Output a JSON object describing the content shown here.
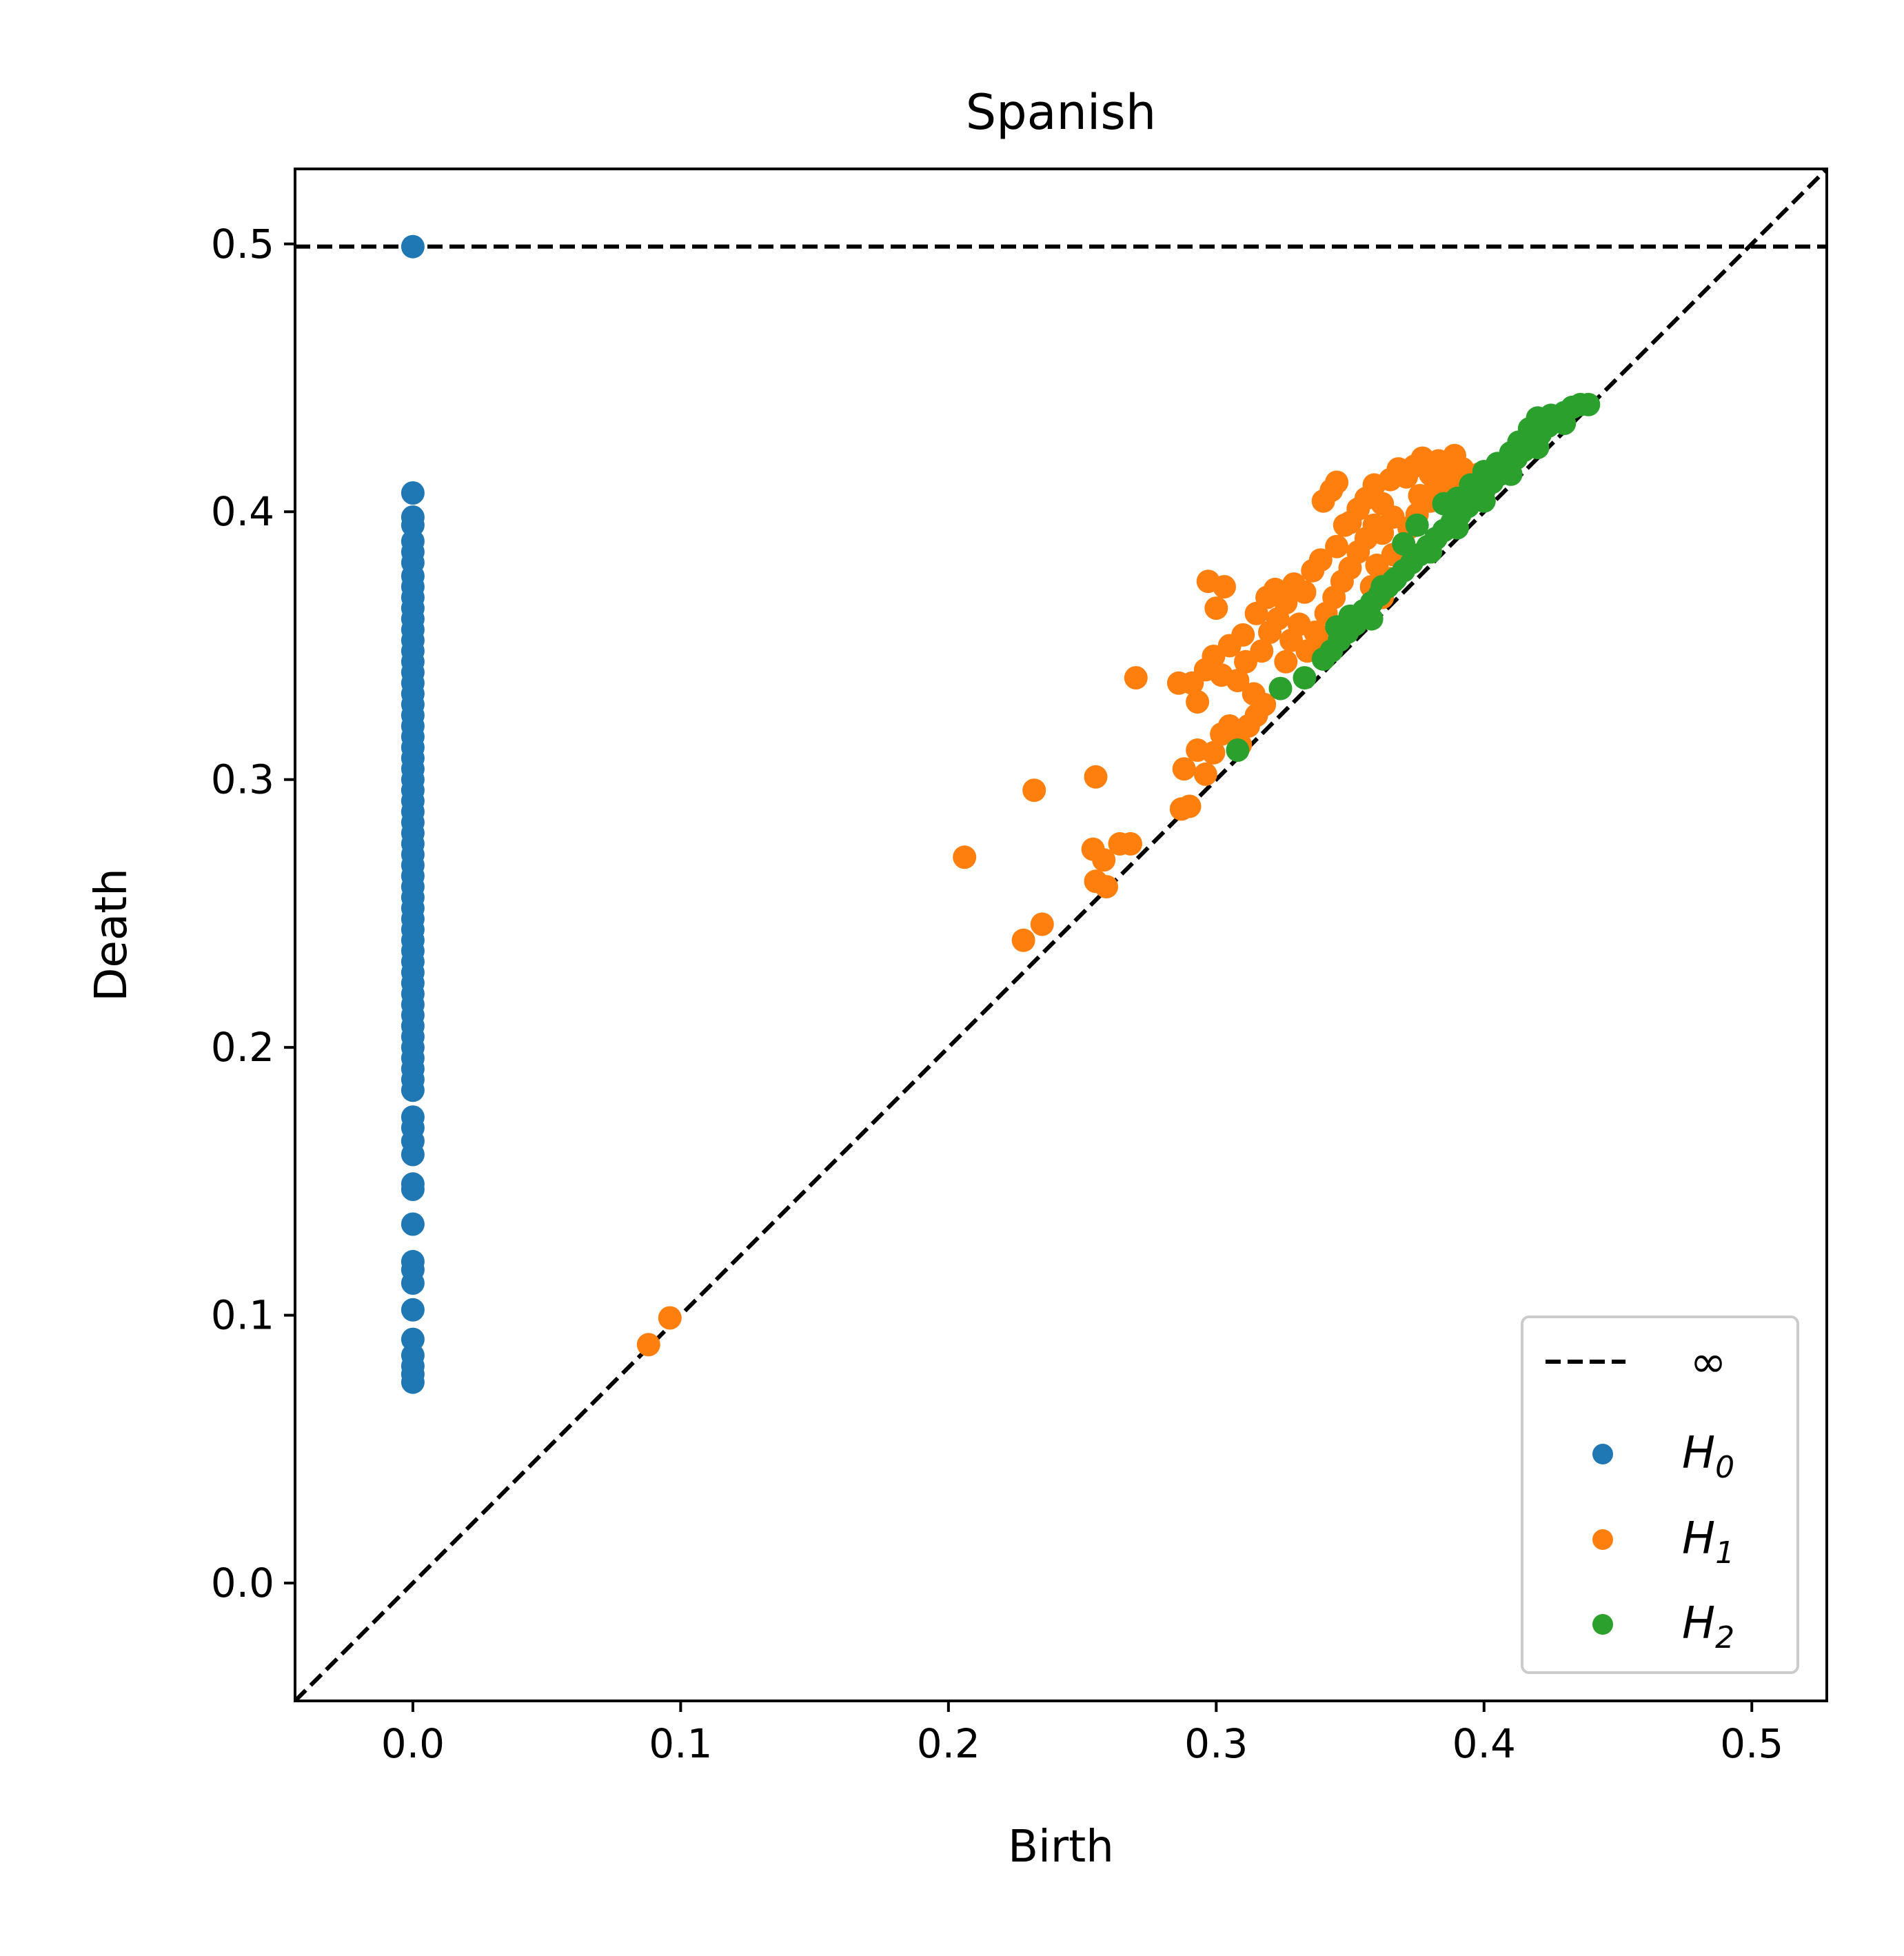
{
  "chart_data": {
    "type": "scatter",
    "title": "Spanish",
    "xlabel": "Birth",
    "ylabel": "Death",
    "xlim": [
      -0.044,
      0.528
    ],
    "ylim": [
      -0.044,
      0.528
    ],
    "xticks": [
      "0.0",
      "0.1",
      "0.2",
      "0.3",
      "0.4",
      "0.5"
    ],
    "yticks": [
      "0.0",
      "0.1",
      "0.2",
      "0.3",
      "0.4",
      "0.5"
    ],
    "grid": false,
    "legend_position": "bottom-right",
    "infinity_line": {
      "label": "∞",
      "y": 0.499,
      "color": "#000000",
      "style": "dashed"
    },
    "diagonal": {
      "color": "#000000",
      "style": "dashed"
    },
    "series": [
      {
        "name": "H",
        "subscript": "0",
        "color": "#1f77b4",
        "points": [
          [
            0.0,
            0.499
          ],
          [
            0.0,
            0.407
          ],
          [
            0.0,
            0.398
          ],
          [
            0.0,
            0.395
          ],
          [
            0.0,
            0.389
          ],
          [
            0.0,
            0.385
          ],
          [
            0.0,
            0.381
          ],
          [
            0.0,
            0.376
          ],
          [
            0.0,
            0.372
          ],
          [
            0.0,
            0.368
          ],
          [
            0.0,
            0.364
          ],
          [
            0.0,
            0.36
          ],
          [
            0.0,
            0.356
          ],
          [
            0.0,
            0.352
          ],
          [
            0.0,
            0.348
          ],
          [
            0.0,
            0.344
          ],
          [
            0.0,
            0.34
          ],
          [
            0.0,
            0.336
          ],
          [
            0.0,
            0.332
          ],
          [
            0.0,
            0.328
          ],
          [
            0.0,
            0.324
          ],
          [
            0.0,
            0.32
          ],
          [
            0.0,
            0.316
          ],
          [
            0.0,
            0.312
          ],
          [
            0.0,
            0.308
          ],
          [
            0.0,
            0.304
          ],
          [
            0.0,
            0.3
          ],
          [
            0.0,
            0.296
          ],
          [
            0.0,
            0.292
          ],
          [
            0.0,
            0.288
          ],
          [
            0.0,
            0.284
          ],
          [
            0.0,
            0.28
          ],
          [
            0.0,
            0.276
          ],
          [
            0.0,
            0.272
          ],
          [
            0.0,
            0.268
          ],
          [
            0.0,
            0.264
          ],
          [
            0.0,
            0.26
          ],
          [
            0.0,
            0.256
          ],
          [
            0.0,
            0.252
          ],
          [
            0.0,
            0.248
          ],
          [
            0.0,
            0.244
          ],
          [
            0.0,
            0.24
          ],
          [
            0.0,
            0.236
          ],
          [
            0.0,
            0.232
          ],
          [
            0.0,
            0.228
          ],
          [
            0.0,
            0.224
          ],
          [
            0.0,
            0.22
          ],
          [
            0.0,
            0.216
          ],
          [
            0.0,
            0.212
          ],
          [
            0.0,
            0.208
          ],
          [
            0.0,
            0.204
          ],
          [
            0.0,
            0.2
          ],
          [
            0.0,
            0.196
          ],
          [
            0.0,
            0.192
          ],
          [
            0.0,
            0.188
          ],
          [
            0.0,
            0.184
          ],
          [
            0.0,
            0.174
          ],
          [
            0.0,
            0.17
          ],
          [
            0.0,
            0.165
          ],
          [
            0.0,
            0.16
          ],
          [
            0.0,
            0.149
          ],
          [
            0.0,
            0.147
          ],
          [
            0.0,
            0.134
          ],
          [
            0.0,
            0.12
          ],
          [
            0.0,
            0.117
          ],
          [
            0.0,
            0.112
          ],
          [
            0.0,
            0.102
          ],
          [
            0.0,
            0.091
          ],
          [
            0.0,
            0.085
          ],
          [
            0.0,
            0.081
          ],
          [
            0.0,
            0.078
          ],
          [
            0.0,
            0.075
          ]
        ]
      },
      {
        "name": "H",
        "subscript": "1",
        "color": "#ff7f0e",
        "points": [
          [
            0.088,
            0.089
          ],
          [
            0.096,
            0.099
          ],
          [
            0.206,
            0.271
          ],
          [
            0.228,
            0.24
          ],
          [
            0.235,
            0.246
          ],
          [
            0.232,
            0.296
          ],
          [
            0.254,
            0.274
          ],
          [
            0.255,
            0.262
          ],
          [
            0.259,
            0.26
          ],
          [
            0.258,
            0.27
          ],
          [
            0.264,
            0.276
          ],
          [
            0.268,
            0.276
          ],
          [
            0.255,
            0.301
          ],
          [
            0.27,
            0.338
          ],
          [
            0.287,
            0.289
          ],
          [
            0.29,
            0.29
          ],
          [
            0.288,
            0.304
          ],
          [
            0.293,
            0.311
          ],
          [
            0.296,
            0.302
          ],
          [
            0.299,
            0.31
          ],
          [
            0.302,
            0.317
          ],
          [
            0.305,
            0.32
          ],
          [
            0.309,
            0.313
          ],
          [
            0.312,
            0.32
          ],
          [
            0.315,
            0.324
          ],
          [
            0.318,
            0.328
          ],
          [
            0.286,
            0.336
          ],
          [
            0.291,
            0.336
          ],
          [
            0.293,
            0.329
          ],
          [
            0.296,
            0.341
          ],
          [
            0.299,
            0.346
          ],
          [
            0.302,
            0.339
          ],
          [
            0.305,
            0.35
          ],
          [
            0.308,
            0.337
          ],
          [
            0.311,
            0.344
          ],
          [
            0.314,
            0.332
          ],
          [
            0.317,
            0.348
          ],
          [
            0.32,
            0.355
          ],
          [
            0.323,
            0.36
          ],
          [
            0.326,
            0.344
          ],
          [
            0.297,
            0.374
          ],
          [
            0.303,
            0.372
          ],
          [
            0.3,
            0.364
          ],
          [
            0.31,
            0.354
          ],
          [
            0.315,
            0.362
          ],
          [
            0.319,
            0.368
          ],
          [
            0.322,
            0.371
          ],
          [
            0.326,
            0.366
          ],
          [
            0.329,
            0.373
          ],
          [
            0.333,
            0.37
          ],
          [
            0.336,
            0.378
          ],
          [
            0.339,
            0.382
          ],
          [
            0.328,
            0.352
          ],
          [
            0.331,
            0.358
          ],
          [
            0.334,
            0.348
          ],
          [
            0.337,
            0.355
          ],
          [
            0.341,
            0.362
          ],
          [
            0.344,
            0.368
          ],
          [
            0.347,
            0.374
          ],
          [
            0.35,
            0.379
          ],
          [
            0.353,
            0.385
          ],
          [
            0.356,
            0.39
          ],
          [
            0.359,
            0.395
          ],
          [
            0.345,
            0.387
          ],
          [
            0.35,
            0.396
          ],
          [
            0.353,
            0.401
          ],
          [
            0.356,
            0.405
          ],
          [
            0.359,
            0.41
          ],
          [
            0.362,
            0.403
          ],
          [
            0.365,
            0.412
          ],
          [
            0.368,
            0.416
          ],
          [
            0.371,
            0.413
          ],
          [
            0.374,
            0.417
          ],
          [
            0.377,
            0.42
          ],
          [
            0.38,
            0.414
          ],
          [
            0.383,
            0.419
          ],
          [
            0.386,
            0.418
          ],
          [
            0.389,
            0.421
          ],
          [
            0.392,
            0.416
          ],
          [
            0.395,
            0.412
          ],
          [
            0.345,
            0.411
          ],
          [
            0.343,
            0.408
          ],
          [
            0.34,
            0.404
          ],
          [
            0.348,
            0.395
          ],
          [
            0.36,
            0.38
          ],
          [
            0.365,
            0.375
          ],
          [
            0.37,
            0.388
          ],
          [
            0.375,
            0.399
          ],
          [
            0.38,
            0.404
          ],
          [
            0.385,
            0.408
          ],
          [
            0.39,
            0.406
          ],
          [
            0.362,
            0.392
          ],
          [
            0.366,
            0.398
          ],
          [
            0.358,
            0.372
          ],
          [
            0.362,
            0.368
          ],
          [
            0.366,
            0.384
          ],
          [
            0.372,
            0.394
          ],
          [
            0.376,
            0.406
          ],
          [
            0.382,
            0.41
          ],
          [
            0.388,
            0.412
          ],
          [
            0.394,
            0.41
          ],
          [
            0.398,
            0.414
          ],
          [
            0.34,
            0.35
          ],
          [
            0.343,
            0.352
          ],
          [
            0.346,
            0.356
          ]
        ]
      },
      {
        "name": "H",
        "subscript": "2",
        "color": "#2ca02c",
        "points": [
          [
            0.308,
            0.311
          ],
          [
            0.324,
            0.334
          ],
          [
            0.333,
            0.338
          ],
          [
            0.34,
            0.345
          ],
          [
            0.343,
            0.348
          ],
          [
            0.346,
            0.352
          ],
          [
            0.349,
            0.355
          ],
          [
            0.352,
            0.358
          ],
          [
            0.345,
            0.357
          ],
          [
            0.35,
            0.361
          ],
          [
            0.355,
            0.363
          ],
          [
            0.358,
            0.366
          ],
          [
            0.361,
            0.369
          ],
          [
            0.364,
            0.372
          ],
          [
            0.367,
            0.375
          ],
          [
            0.37,
            0.378
          ],
          [
            0.373,
            0.381
          ],
          [
            0.376,
            0.384
          ],
          [
            0.379,
            0.387
          ],
          [
            0.382,
            0.39
          ],
          [
            0.385,
            0.393
          ],
          [
            0.388,
            0.396
          ],
          [
            0.391,
            0.399
          ],
          [
            0.394,
            0.402
          ],
          [
            0.397,
            0.405
          ],
          [
            0.4,
            0.408
          ],
          [
            0.403,
            0.411
          ],
          [
            0.406,
            0.414
          ],
          [
            0.409,
            0.417
          ],
          [
            0.412,
            0.42
          ],
          [
            0.415,
            0.423
          ],
          [
            0.418,
            0.426
          ],
          [
            0.421,
            0.429
          ],
          [
            0.424,
            0.432
          ],
          [
            0.427,
            0.435
          ],
          [
            0.43,
            0.437
          ],
          [
            0.433,
            0.439
          ],
          [
            0.436,
            0.44
          ],
          [
            0.439,
            0.44
          ],
          [
            0.375,
            0.395
          ],
          [
            0.37,
            0.388
          ],
          [
            0.366,
            0.374
          ],
          [
            0.362,
            0.372
          ],
          [
            0.358,
            0.36
          ],
          [
            0.385,
            0.403
          ],
          [
            0.39,
            0.405
          ],
          [
            0.395,
            0.41
          ],
          [
            0.4,
            0.415
          ],
          [
            0.405,
            0.418
          ],
          [
            0.41,
            0.422
          ],
          [
            0.413,
            0.426
          ],
          [
            0.417,
            0.431
          ],
          [
            0.42,
            0.435
          ],
          [
            0.425,
            0.436
          ],
          [
            0.38,
            0.385
          ],
          [
            0.39,
            0.394
          ],
          [
            0.4,
            0.404
          ],
          [
            0.41,
            0.414
          ],
          [
            0.42,
            0.424
          ],
          [
            0.43,
            0.433
          ]
        ]
      }
    ]
  }
}
